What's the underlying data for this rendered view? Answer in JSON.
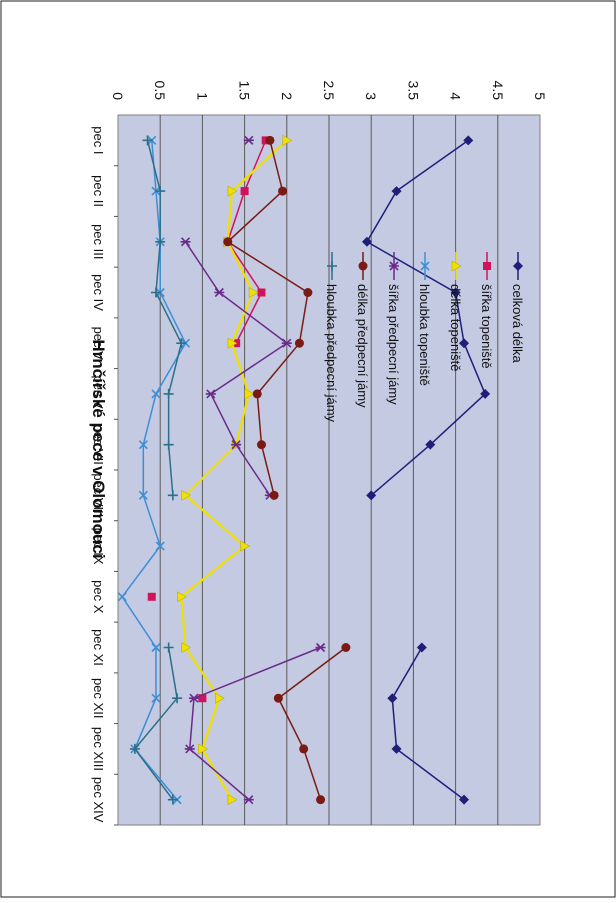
{
  "chart_data": {
    "type": "line",
    "title": "Hrnčířské pece v Olomouci",
    "xlabel": "",
    "ylabel": "",
    "ylim": [
      0,
      5
    ],
    "y_ticks": [
      "0",
      "0.5",
      "1",
      "1.5",
      "2",
      "2.5",
      "3",
      "3.5",
      "4",
      "4.5",
      "5"
    ],
    "categories": [
      "pec I",
      "pec II",
      "pec III",
      "pec IV",
      "pec V",
      "pec VI",
      "pec VII",
      "pec VIII",
      "pec IX",
      "pec X",
      "pec XI",
      "pec XII",
      "pec XIII",
      "pec XIV"
    ],
    "grid": true,
    "legend_position": "right",
    "series": [
      {
        "name": "celková délka",
        "color": "#1f1f7a",
        "marker": "diamond",
        "values": [
          4.15,
          3.3,
          2.95,
          4.0,
          4.1,
          4.35,
          3.7,
          3.0,
          null,
          null,
          3.6,
          3.25,
          3.3,
          4.1
        ]
      },
      {
        "name": "šířka topeniště",
        "color": "#d1145a",
        "marker": "square",
        "values": [
          1.75,
          1.5,
          1.3,
          1.7,
          1.4,
          null,
          null,
          null,
          null,
          0.4,
          null,
          1.0,
          null,
          null
        ]
      },
      {
        "name": "délka topeniště",
        "color": "#f0e000",
        "marker": "triangle",
        "values": [
          2.0,
          1.35,
          1.3,
          1.6,
          1.35,
          1.55,
          1.4,
          0.8,
          1.5,
          0.75,
          0.8,
          1.2,
          1.0,
          1.35
        ]
      },
      {
        "name": "hloubka topeniště",
        "color": "#3c8fd6",
        "marker": "x",
        "values": [
          0.4,
          0.45,
          0.5,
          0.5,
          0.8,
          0.45,
          0.3,
          0.3,
          0.5,
          0.05,
          0.45,
          0.45,
          0.2,
          0.7
        ]
      },
      {
        "name": "šířka předpecní jámy",
        "color": "#6a2a8a",
        "marker": "star",
        "values": [
          1.55,
          null,
          0.8,
          1.2,
          2.0,
          1.1,
          1.4,
          1.8,
          null,
          null,
          2.4,
          0.9,
          0.85,
          1.55
        ]
      },
      {
        "name": "délka předpecní jámy",
        "color": "#7a1a14",
        "marker": "circle",
        "values": [
          1.8,
          1.95,
          1.3,
          2.25,
          2.15,
          1.65,
          1.7,
          1.85,
          null,
          null,
          2.7,
          1.9,
          2.2,
          2.4
        ]
      },
      {
        "name": "hloubka předpecní jámy",
        "color": "#2d6f88",
        "marker": "plus",
        "values": [
          0.35,
          0.5,
          0.5,
          0.45,
          0.75,
          0.6,
          0.6,
          0.65,
          null,
          null,
          0.6,
          0.7,
          0.2,
          0.65
        ]
      }
    ]
  }
}
